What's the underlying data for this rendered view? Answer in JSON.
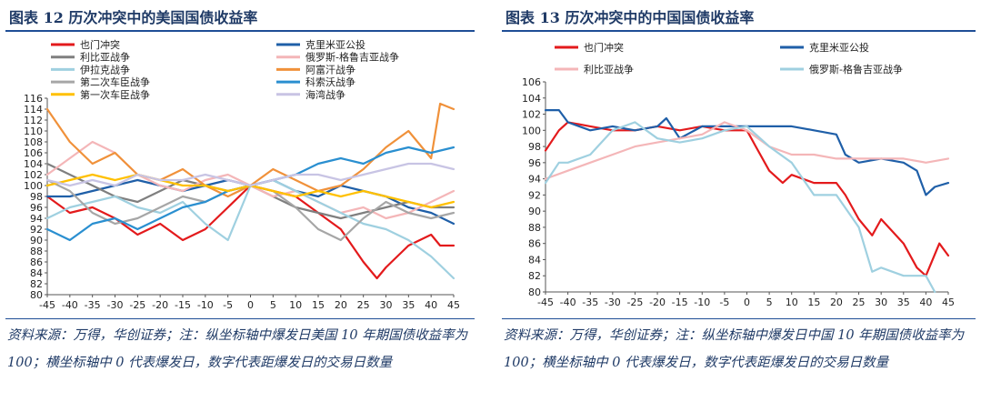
{
  "left": {
    "title": "图表 12    历次冲突中的美国国债收益率",
    "source": "资料来源：万得，华创证券；注：纵坐标轴中爆发日美国 10 年期国债收益率为 100；横坐标轴中 0 代表爆发日，数字代表距爆发日的交易日数量"
  },
  "right": {
    "title": "图表 13    历次冲突中的中国国债收益率",
    "source": "资料来源：万得，华创证券；注：纵坐标轴中爆发日中国 10 年期国债收益率为 100；横坐标轴中 0 代表爆发日，数字代表距爆发日的交易日数量"
  },
  "chart_data": [
    {
      "type": "line",
      "xlim": [
        -45,
        45
      ],
      "ylim": [
        80,
        116
      ],
      "x_ticks": [
        -45,
        -40,
        -35,
        -30,
        -25,
        -20,
        -15,
        -10,
        -5,
        0,
        5,
        10,
        15,
        20,
        25,
        30,
        35,
        40,
        45
      ],
      "y_ticks": [
        80,
        82,
        84,
        86,
        88,
        90,
        92,
        94,
        96,
        98,
        100,
        102,
        104,
        106,
        108,
        110,
        112,
        114,
        116
      ],
      "grid": false,
      "legend_position": "top",
      "series": [
        {
          "name": "也门冲突",
          "color": "#e31a1c",
          "x": [
            -45,
            -40,
            -35,
            -30,
            -25,
            -20,
            -15,
            -10,
            -5,
            0,
            5,
            10,
            15,
            20,
            25,
            28,
            30,
            35,
            40,
            42,
            45
          ],
          "y": [
            98,
            95,
            96,
            94,
            91,
            93,
            90,
            92,
            96,
            100,
            99,
            98,
            95,
            92,
            86,
            83,
            85,
            89,
            91,
            89,
            89
          ]
        },
        {
          "name": "克里米亚公投",
          "color": "#1f5fa8",
          "x": [
            -45,
            -40,
            -35,
            -30,
            -25,
            -20,
            -15,
            -10,
            -5,
            0,
            5,
            10,
            15,
            20,
            25,
            30,
            35,
            40,
            45
          ],
          "y": [
            98,
            98,
            99,
            100,
            101,
            100,
            99,
            100,
            101,
            100,
            101,
            99,
            98,
            100,
            99,
            98,
            96,
            95,
            93
          ]
        },
        {
          "name": "利比亚战争",
          "color": "#7f7f7f",
          "x": [
            -45,
            -40,
            -35,
            -30,
            -25,
            -20,
            -15,
            -10,
            -5,
            0,
            5,
            10,
            15,
            20,
            25,
            30,
            35,
            40,
            45
          ],
          "y": [
            104,
            102,
            100,
            98,
            97,
            99,
            101,
            100,
            99,
            100,
            98,
            96,
            95,
            94,
            95,
            96,
            97,
            96,
            96
          ]
        },
        {
          "name": "俄罗斯-格鲁吉亚战争",
          "color": "#f4b6b8",
          "x": [
            -45,
            -40,
            -35,
            -30,
            -25,
            -20,
            -15,
            -10,
            -5,
            0,
            5,
            10,
            15,
            20,
            25,
            30,
            35,
            40,
            45
          ],
          "y": [
            102,
            105,
            108,
            106,
            102,
            100,
            99,
            101,
            102,
            100,
            98,
            99,
            97,
            95,
            96,
            94,
            95,
            97,
            99
          ]
        },
        {
          "name": "伊拉克战争",
          "color": "#9fd0e0",
          "x": [
            -45,
            -40,
            -35,
            -30,
            -25,
            -20,
            -15,
            -10,
            -5,
            0,
            5,
            10,
            15,
            20,
            25,
            30,
            35,
            40,
            45
          ],
          "y": [
            94,
            96,
            97,
            98,
            96,
            95,
            97,
            93,
            90,
            100,
            101,
            99,
            97,
            95,
            93,
            92,
            90,
            87,
            83
          ]
        },
        {
          "name": "阿富汗战争",
          "color": "#f0913a",
          "x": [
            -45,
            -40,
            -35,
            -30,
            -25,
            -20,
            -15,
            -10,
            -5,
            0,
            5,
            10,
            15,
            20,
            25,
            30,
            35,
            40,
            42,
            45
          ],
          "y": [
            114,
            108,
            104,
            106,
            102,
            101,
            103,
            100,
            98,
            100,
            103,
            101,
            99,
            100,
            103,
            107,
            110,
            105,
            115,
            114
          ]
        },
        {
          "name": "第二次车臣战争",
          "color": "#a6a6a6",
          "x": [
            -45,
            -40,
            -35,
            -30,
            -25,
            -20,
            -15,
            -10,
            -5,
            0,
            5,
            10,
            15,
            20,
            25,
            30,
            35,
            40,
            45
          ],
          "y": [
            101,
            99,
            95,
            93,
            94,
            96,
            98,
            97,
            99,
            100,
            99,
            96,
            92,
            90,
            94,
            97,
            95,
            94,
            95
          ]
        },
        {
          "name": "科索沃战争",
          "color": "#2a8fd0",
          "x": [
            -45,
            -40,
            -35,
            -30,
            -25,
            -20,
            -15,
            -10,
            -5,
            0,
            5,
            10,
            15,
            20,
            25,
            30,
            35,
            40,
            45
          ],
          "y": [
            92,
            90,
            93,
            94,
            92,
            94,
            96,
            97,
            99,
            100,
            101,
            102,
            104,
            105,
            104,
            106,
            107,
            106,
            107
          ]
        },
        {
          "name": "第一次车臣战争",
          "color": "#ffc000",
          "x": [
            -45,
            -40,
            -35,
            -30,
            -25,
            -20,
            -15,
            -10,
            -5,
            0,
            5,
            10,
            15,
            20,
            25,
            30,
            35,
            40,
            45
          ],
          "y": [
            100,
            101,
            102,
            101,
            102,
            101,
            100,
            100,
            99,
            100,
            99,
            98,
            99,
            98,
            99,
            98,
            97,
            96,
            97
          ]
        },
        {
          "name": "海湾战争",
          "color": "#c8c4e4",
          "x": [
            -45,
            -40,
            -35,
            -30,
            -25,
            -20,
            -15,
            -10,
            -5,
            0,
            5,
            10,
            15,
            20,
            25,
            30,
            35,
            40,
            45
          ],
          "y": [
            101,
            100,
            101,
            100,
            102,
            101,
            101,
            102,
            101,
            100,
            101,
            102,
            102,
            101,
            102,
            103,
            104,
            104,
            103
          ]
        }
      ]
    },
    {
      "type": "line",
      "xlim": [
        -45,
        45
      ],
      "ylim": [
        80,
        106
      ],
      "x_ticks": [
        -45,
        -40,
        -35,
        -30,
        -25,
        -20,
        -15,
        -10,
        -5,
        0,
        5,
        10,
        15,
        20,
        25,
        30,
        35,
        40,
        45
      ],
      "y_ticks": [
        80,
        82,
        84,
        86,
        88,
        90,
        92,
        94,
        96,
        98,
        100,
        102,
        104,
        106
      ],
      "grid": false,
      "legend_position": "top",
      "series": [
        {
          "name": "也门冲突",
          "color": "#e31a1c",
          "x": [
            -45,
            -42,
            -40,
            -35,
            -30,
            -25,
            -20,
            -15,
            -10,
            -5,
            0,
            2,
            5,
            8,
            10,
            15,
            20,
            22,
            25,
            28,
            30,
            35,
            38,
            40,
            43,
            45
          ],
          "y": [
            97.5,
            100,
            101,
            100.5,
            100,
            100,
            100.5,
            100,
            100.5,
            100,
            100,
            98,
            95,
            93.5,
            94.5,
            93.5,
            93.5,
            92,
            89,
            87,
            89,
            86,
            83,
            82,
            86,
            84.5
          ]
        },
        {
          "name": "克里米亚公投",
          "color": "#1f5fa8",
          "x": [
            -45,
            -42,
            -40,
            -35,
            -30,
            -25,
            -20,
            -18,
            -15,
            -10,
            -5,
            0,
            5,
            10,
            15,
            20,
            22,
            25,
            30,
            35,
            38,
            40,
            42,
            45
          ],
          "y": [
            102.5,
            102.5,
            101,
            100,
            100.5,
            100,
            100.5,
            101.5,
            99,
            100.5,
            100.5,
            100.5,
            100.5,
            100.5,
            100,
            99.5,
            97,
            96,
            96.5,
            96,
            95,
            92,
            93,
            93.5
          ]
        },
        {
          "name": "利比亚战争",
          "color": "#f4b6b8",
          "x": [
            -45,
            -40,
            -35,
            -30,
            -25,
            -20,
            -15,
            -10,
            -5,
            0,
            5,
            10,
            15,
            20,
            25,
            30,
            35,
            40,
            45
          ],
          "y": [
            94,
            95,
            96,
            97,
            98,
            98.5,
            99,
            99.5,
            101,
            100,
            98,
            97,
            97,
            96.5,
            96.5,
            96.5,
            96.5,
            96,
            96.5
          ]
        },
        {
          "name": "俄罗斯-格鲁吉亚战争",
          "color": "#9fd0e0",
          "x": [
            -45,
            -42,
            -40,
            -35,
            -30,
            -25,
            -20,
            -15,
            -10,
            -5,
            0,
            5,
            10,
            15,
            20,
            25,
            28,
            30,
            35,
            40,
            42
          ],
          "y": [
            93.5,
            96,
            96,
            97,
            100,
            101,
            99,
            98.5,
            99,
            100,
            100.5,
            98,
            96,
            92,
            92,
            88,
            82.5,
            83,
            82,
            82,
            80
          ]
        }
      ]
    }
  ]
}
